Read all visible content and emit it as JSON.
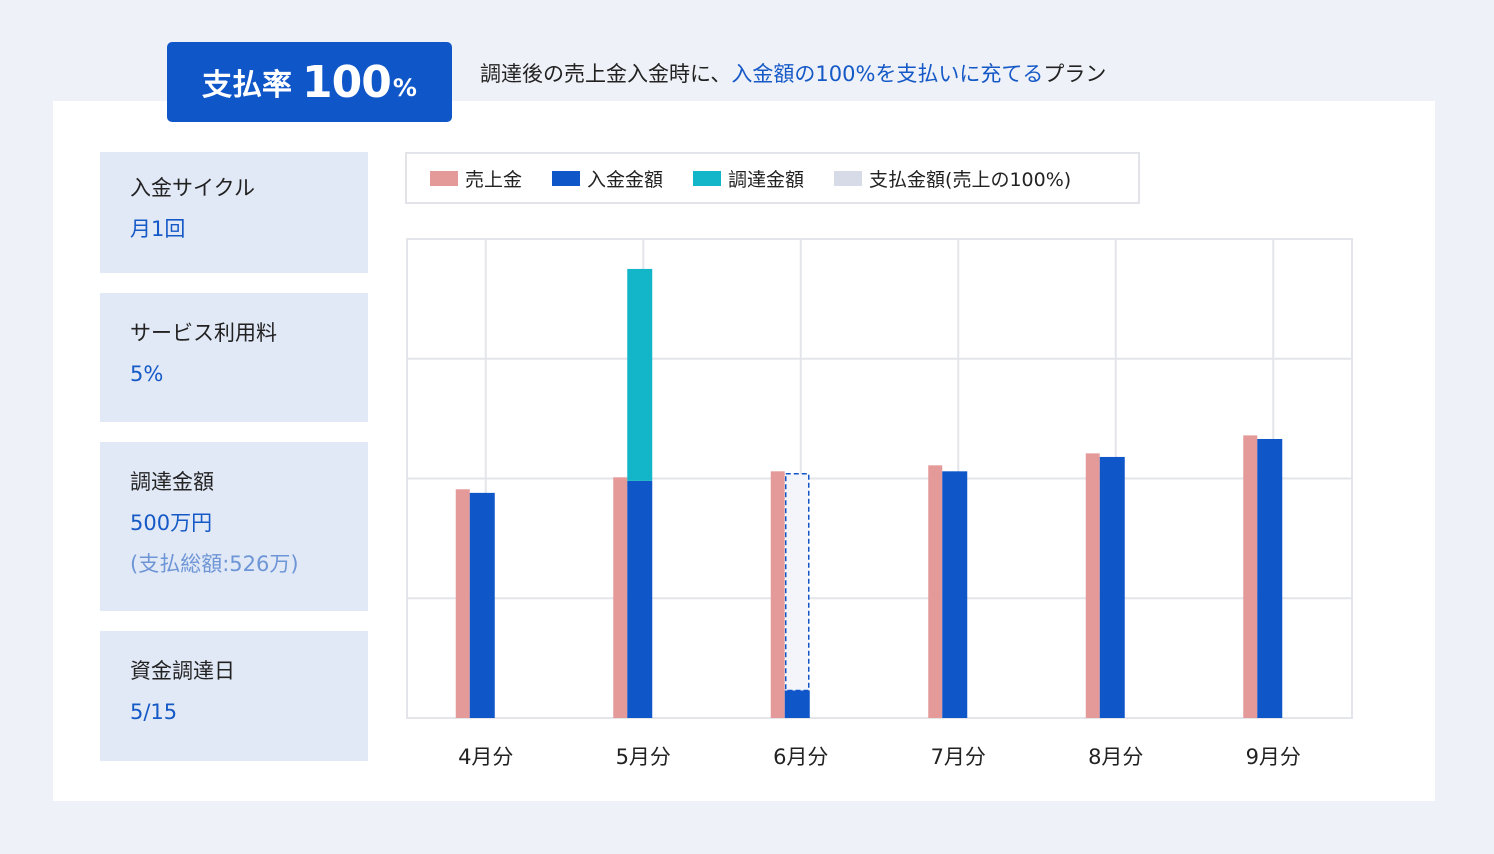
{
  "badge": {
    "label": "支払率",
    "value": "100",
    "unit": "%"
  },
  "description": {
    "prefix": "調達後の売上金入金時に、",
    "highlight": "入金額の100%を支払いに充てる",
    "suffix": "プラン"
  },
  "info": [
    {
      "label": "入金サイクル",
      "value": "月1回"
    },
    {
      "label": "サービス利用料",
      "value": "5%"
    },
    {
      "label": "調達金額",
      "value": "500万円",
      "sub": "(支払総額:526万)"
    },
    {
      "label": "資金調達日",
      "value": "5/15"
    }
  ],
  "legend": [
    {
      "label": "売上金",
      "color": "#e59a9a"
    },
    {
      "label": "入金金額",
      "color": "#0f56c8"
    },
    {
      "label": "調達金額",
      "color": "#13b5c8"
    },
    {
      "label": "支払金額(売上の100%)",
      "color": "#d6dbe7"
    }
  ],
  "chart_data": {
    "type": "bar",
    "categories": [
      "4月分",
      "5月分",
      "6月分",
      "7月分",
      "8月分",
      "9月分"
    ],
    "ylim": [
      0,
      400
    ],
    "grid": true,
    "legend_position": "top",
    "series": [
      {
        "name": "売上金",
        "color": "#e59a9a",
        "values": [
          191,
          201,
          206,
          211,
          221,
          236
        ]
      },
      {
        "name": "入金金額",
        "color": "#0f56c8",
        "values": [
          188,
          198,
          23,
          206,
          218,
          233
        ]
      },
      {
        "name": "調達金額",
        "color": "#13b5c8",
        "values": [
          0,
          177,
          0,
          0,
          0,
          0
        ]
      },
      {
        "name": "支払金額(売上の100%)",
        "color": "#f3f5fa",
        "values": [
          0,
          0,
          181,
          0,
          0,
          0
        ]
      }
    ]
  }
}
